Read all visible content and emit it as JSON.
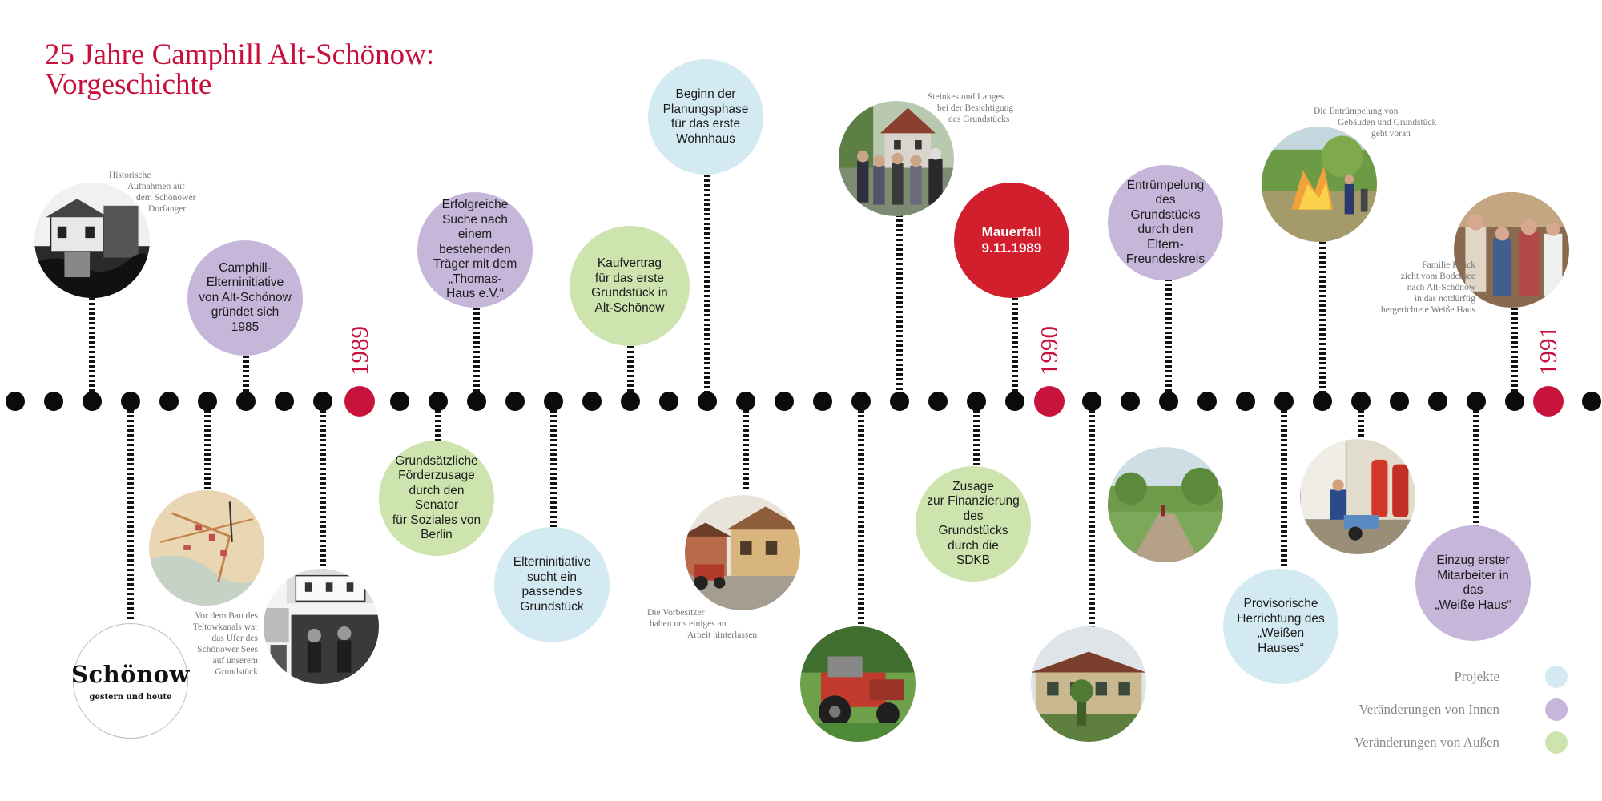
{
  "title": {
    "line1": "25 Jahre Camphill Alt-Schönow:",
    "line2": "Vorgeschichte"
  },
  "years": [
    "1989",
    "1990",
    "1991"
  ],
  "events": [
    {
      "id": "elterninitiative-gruendet",
      "category": "inside",
      "lines": [
        "Camphill-",
        "Elterninitiative",
        "von Alt-Schönow",
        "gründet sich",
        "1985"
      ]
    },
    {
      "id": "erfolgreiche-suche",
      "category": "inside",
      "lines": [
        "Erfolgreiche",
        "Suche nach einem",
        "bestehenden",
        "Träger mit dem",
        "„Thomas-",
        "Haus e.V.“"
      ]
    },
    {
      "id": "foerderzusage",
      "category": "outside",
      "lines": [
        "Grundsätzliche",
        "Förderzusage",
        "durch den Senator",
        "für Soziales von",
        "Berlin"
      ]
    },
    {
      "id": "grundstueck-suche",
      "category": "project",
      "lines": [
        "Elterninitiative",
        "sucht ein",
        "passendes",
        "Grundstück"
      ]
    },
    {
      "id": "kaufvertrag",
      "category": "outside",
      "lines": [
        "Kaufvertrag",
        "für das erste",
        "Grundstück in",
        "Alt-Schönow"
      ]
    },
    {
      "id": "planungsphase",
      "category": "project",
      "lines": [
        "Beginn der",
        "Planungsphase",
        "für das erste",
        "Wohnhaus"
      ]
    },
    {
      "id": "mauerfall",
      "category": "highlight",
      "lines": [
        "Mauerfall",
        "9.11.1989"
      ]
    },
    {
      "id": "finanzierung",
      "category": "outside",
      "lines": [
        "Zusage",
        "zur Finanzierung",
        "des Grundstücks",
        "durch die",
        "SDKB"
      ]
    },
    {
      "id": "entruempelung",
      "category": "inside",
      "lines": [
        "Entrümpelung",
        "des Grundstücks",
        "durch den",
        "Eltern-",
        "Freundeskreis"
      ]
    },
    {
      "id": "weisses-haus-herrichtung",
      "category": "project",
      "lines": [
        "Provisorische",
        "Herrichtung des",
        "„Weißen Hauses“"
      ]
    },
    {
      "id": "einzug-mitarbeiter",
      "category": "inside",
      "lines": [
        "Einzug erster",
        "Mitarbeiter in das",
        "„Weiße Haus“"
      ]
    }
  ],
  "captions": [
    {
      "id": "historische-aufnahmen",
      "lines": [
        "Historische",
        "Aufnahmen auf",
        "dem Schönower",
        "Dorfanger"
      ]
    },
    {
      "id": "teltowkanal",
      "lines": [
        "Vor dem Bau des",
        "Teltowkanals war",
        "das Ufer des",
        "Schönower Sees",
        "auf unserem",
        "Grundstück"
      ]
    },
    {
      "id": "vorbesitzer",
      "lines": [
        "Die Vorbesitzer",
        "haben uns einiges an",
        "Arbeit hinterlassen"
      ]
    },
    {
      "id": "steinkes-langes",
      "lines": [
        "Steinkes und Langes",
        "bei der Besichtigung",
        "des Grundstücks"
      ]
    },
    {
      "id": "entruempelung-caption",
      "lines": [
        "Die Entrümpelung von",
        "Gebäuden und Grundstück",
        "geht voran"
      ]
    },
    {
      "id": "familie-krueck",
      "lines": [
        "Familie Krück",
        "zieht vom Bodensee",
        "nach Alt-Schönow",
        "in das notdürftig",
        "hergerichtete Weiße Haus"
      ]
    }
  ],
  "logo": {
    "main": "Schönow",
    "sub": "gestern und heute"
  },
  "legend": [
    {
      "label": "Projekte",
      "color": "#d3eaf2"
    },
    {
      "label": "Veränderungen von Innen",
      "color": "#c6b6da"
    },
    {
      "label": "Veränderungen von Außen",
      "color": "#cde4ae"
    }
  ],
  "colors": {
    "project": "#d3eaf2",
    "inside": "#c6b6da",
    "outside": "#cde4ae",
    "highlight": "#d11f2e",
    "accent": "#c8103c"
  }
}
